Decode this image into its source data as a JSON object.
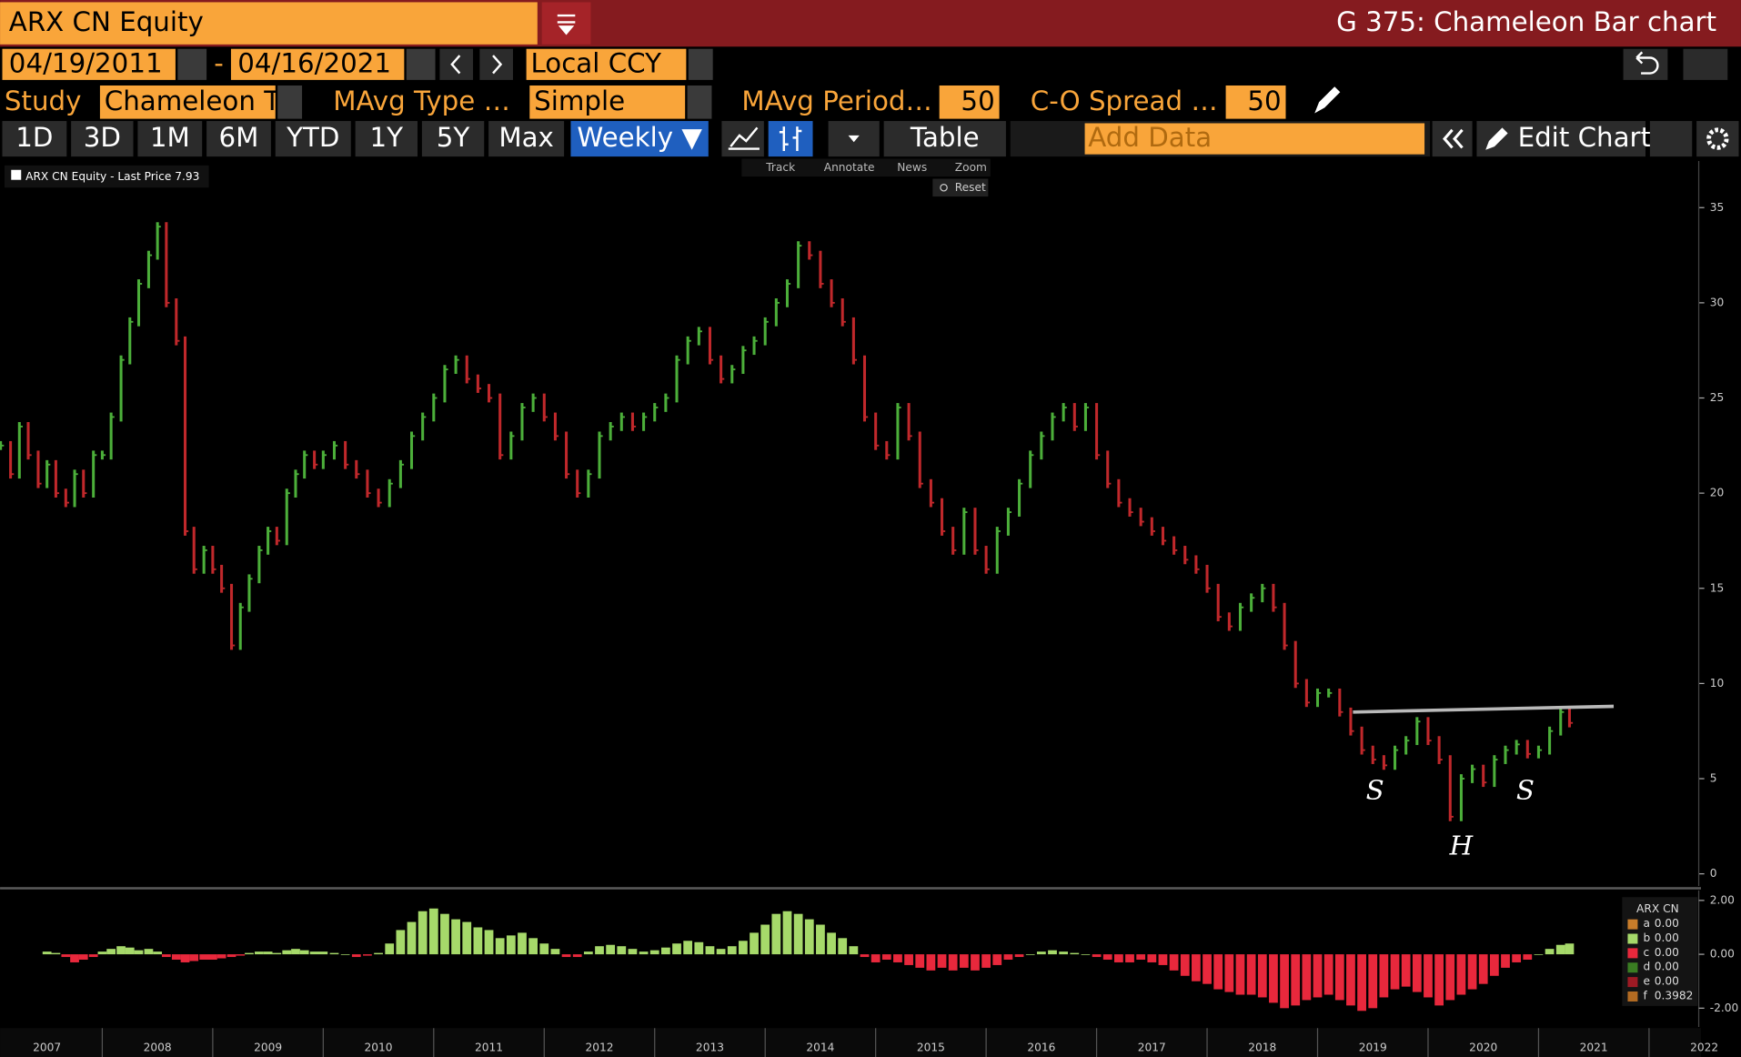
{
  "ui": {
    "ticker": "ARX CN Equity",
    "function_title": "G 375: Chameleon Bar chart",
    "start_date": "04/19/2011",
    "date_sep": "-",
    "end_date": "04/16/2021",
    "currency": "Local CCY",
    "study_label": "Study",
    "study": "Chameleon T",
    "mavg_type_label": "MAvg Type …",
    "mavg_type": "Simple",
    "mavg_period_label": "MAvg Period…",
    "mavg_period": "50",
    "co_spread_label": "C-O Spread …",
    "co_spread": "50",
    "ranges": [
      "1D",
      "3D",
      "1M",
      "6M",
      "YTD",
      "1Y",
      "5Y",
      "Max"
    ],
    "frequency": "Weekly ▼",
    "table": "Table",
    "add_data": "Add Data",
    "edit_chart": "Edit Chart",
    "tools": [
      "Track",
      "Annotate",
      "News",
      "Zoom"
    ],
    "reset": "Reset"
  },
  "chart_data": [
    {
      "type": "bar",
      "legend_text": "ARX CN Equity - Last Price",
      "last_price": 7.93,
      "up_color": "#4caf3a",
      "down_color": "#c0282b",
      "x": [
        2007.08,
        2007.17,
        2007.25,
        2007.33,
        2007.42,
        2007.5,
        2007.58,
        2007.67,
        2007.75,
        2007.83,
        2007.92,
        2008.0,
        2008.08,
        2008.17,
        2008.25,
        2008.33,
        2008.42,
        2008.5,
        2008.58,
        2008.67,
        2008.75,
        2008.83,
        2008.92,
        2009.0,
        2009.08,
        2009.17,
        2009.25,
        2009.33,
        2009.42,
        2009.5,
        2009.58,
        2009.67,
        2009.75,
        2009.83,
        2009.92,
        2010.0,
        2010.1,
        2010.2,
        2010.3,
        2010.4,
        2010.5,
        2010.6,
        2010.7,
        2010.8,
        2010.9,
        2011.0,
        2011.1,
        2011.2,
        2011.3,
        2011.4,
        2011.5,
        2011.6,
        2011.7,
        2011.8,
        2011.9,
        2012.0,
        2012.1,
        2012.2,
        2012.3,
        2012.4,
        2012.5,
        2012.6,
        2012.7,
        2012.8,
        2012.9,
        2013.0,
        2013.1,
        2013.2,
        2013.3,
        2013.4,
        2013.5,
        2013.6,
        2013.7,
        2013.8,
        2013.9,
        2014.0,
        2014.1,
        2014.2,
        2014.3,
        2014.4,
        2014.5,
        2014.6,
        2014.7,
        2014.8,
        2014.9,
        2015.0,
        2015.1,
        2015.2,
        2015.3,
        2015.4,
        2015.5,
        2015.6,
        2015.7,
        2015.8,
        2015.9,
        2016.0,
        2016.1,
        2016.2,
        2016.3,
        2016.4,
        2016.5,
        2016.6,
        2016.7,
        2016.8,
        2016.9,
        2017.0,
        2017.1,
        2017.2,
        2017.3,
        2017.4,
        2017.5,
        2017.6,
        2017.7,
        2017.8,
        2017.9,
        2018.0,
        2018.1,
        2018.2,
        2018.3,
        2018.4,
        2018.5,
        2018.6,
        2018.7,
        2018.8,
        2018.9,
        2019.0,
        2019.1,
        2019.2,
        2019.3,
        2019.4,
        2019.5,
        2019.6,
        2019.7,
        2019.8,
        2019.9,
        2020.0,
        2020.1,
        2020.2,
        2020.3,
        2020.4,
        2020.5,
        2020.6,
        2020.7,
        2020.8,
        2020.9,
        2021.0,
        2021.1,
        2021.2,
        2021.28
      ],
      "values": [
        22.5,
        21,
        23.5,
        22,
        20.5,
        21.5,
        20,
        19.5,
        21,
        20,
        22,
        22,
        24,
        27,
        29,
        31,
        32.5,
        34,
        30,
        28,
        18,
        16,
        17,
        16,
        15,
        12,
        14,
        15.5,
        17,
        18,
        17.5,
        20,
        21,
        22,
        21.5,
        22,
        22.5,
        21.5,
        21,
        20,
        19.5,
        20.5,
        21.5,
        23,
        24,
        25,
        26.5,
        27,
        26,
        25.5,
        25,
        22,
        23,
        24.5,
        25,
        24,
        23,
        21,
        20,
        21,
        23,
        23.5,
        24,
        23.5,
        24,
        24.5,
        25,
        27,
        28,
        28.5,
        27,
        26,
        26.5,
        27.5,
        28,
        29,
        30,
        31,
        33,
        32.5,
        31,
        30,
        29,
        27,
        24,
        22.5,
        22,
        24.5,
        23,
        20.5,
        19.5,
        18,
        17,
        19,
        17,
        16,
        18,
        19,
        20.5,
        22,
        23,
        24,
        24.5,
        23.5,
        24.5,
        22,
        20.5,
        19.5,
        19,
        18.5,
        18,
        17.5,
        17,
        16.5,
        16,
        15,
        13.5,
        13,
        14,
        14.5,
        15,
        14,
        12,
        10,
        9,
        9.5,
        9.5,
        8.5,
        7.5,
        6.5,
        6,
        5.7,
        6.5,
        7,
        8,
        7,
        6,
        3,
        5,
        5.5,
        4.8,
        6,
        6.5,
        6.8,
        6.3,
        6.5,
        7.5,
        8.5,
        7.93
      ],
      "xlim": [
        2007.075,
        2022.45
      ],
      "ylim": [
        -0.64,
        37.45
      ],
      "yticks": [
        0,
        5,
        10,
        15,
        20,
        25,
        30,
        35
      ],
      "trendline": {
        "x": [
          2019.32,
          2021.68
        ],
        "y": [
          8.5,
          8.8
        ],
        "color": "#b9b9b9"
      },
      "annotations": [
        {
          "text": "S",
          "x": 2019.52,
          "y": 4.3
        },
        {
          "text": "H",
          "x": 2020.3,
          "y": 1.4
        },
        {
          "text": "S",
          "x": 2020.88,
          "y": 4.3
        }
      ]
    },
    {
      "type": "histogram",
      "legend_title": "ARX CN",
      "legend": [
        {
          "name": "a",
          "color": "#c97d2a",
          "value": "0.00"
        },
        {
          "name": "b",
          "color": "#a6d96a",
          "value": "0.00"
        },
        {
          "name": "c",
          "color": "#e8283c",
          "value": "0.00"
        },
        {
          "name": "d",
          "color": "#3a7d22",
          "value": "0.00"
        },
        {
          "name": "e",
          "color": "#9e1a24",
          "value": "0.00"
        },
        {
          "name": "f",
          "color": "#b36b22",
          "value": "0.3982"
        }
      ],
      "positive_color": "#a6d96a",
      "negative_color": "#e8283c",
      "x": [
        2007.08,
        2007.17,
        2007.25,
        2007.33,
        2007.42,
        2007.5,
        2007.58,
        2007.67,
        2007.75,
        2007.83,
        2007.92,
        2008.0,
        2008.08,
        2008.17,
        2008.25,
        2008.33,
        2008.42,
        2008.5,
        2008.58,
        2008.67,
        2008.75,
        2008.83,
        2008.92,
        2009.0,
        2009.08,
        2009.17,
        2009.25,
        2009.33,
        2009.42,
        2009.5,
        2009.58,
        2009.67,
        2009.75,
        2009.83,
        2009.92,
        2010.0,
        2010.1,
        2010.2,
        2010.3,
        2010.4,
        2010.5,
        2010.6,
        2010.7,
        2010.8,
        2010.9,
        2011.0,
        2011.1,
        2011.2,
        2011.3,
        2011.4,
        2011.5,
        2011.6,
        2011.7,
        2011.8,
        2011.9,
        2012.0,
        2012.1,
        2012.2,
        2012.3,
        2012.4,
        2012.5,
        2012.6,
        2012.7,
        2012.8,
        2012.9,
        2013.0,
        2013.1,
        2013.2,
        2013.3,
        2013.4,
        2013.5,
        2013.6,
        2013.7,
        2013.8,
        2013.9,
        2014.0,
        2014.1,
        2014.2,
        2014.3,
        2014.4,
        2014.5,
        2014.6,
        2014.7,
        2014.8,
        2014.9,
        2015.0,
        2015.1,
        2015.2,
        2015.3,
        2015.4,
        2015.5,
        2015.6,
        2015.7,
        2015.8,
        2015.9,
        2016.0,
        2016.1,
        2016.2,
        2016.3,
        2016.4,
        2016.5,
        2016.6,
        2016.7,
        2016.8,
        2016.9,
        2017.0,
        2017.1,
        2017.2,
        2017.3,
        2017.4,
        2017.5,
        2017.6,
        2017.7,
        2017.8,
        2017.9,
        2018.0,
        2018.1,
        2018.2,
        2018.3,
        2018.4,
        2018.5,
        2018.6,
        2018.7,
        2018.8,
        2018.9,
        2019.0,
        2019.1,
        2019.2,
        2019.3,
        2019.4,
        2019.5,
        2019.6,
        2019.7,
        2019.8,
        2019.9,
        2020.0,
        2020.1,
        2020.2,
        2020.3,
        2020.4,
        2020.5,
        2020.6,
        2020.7,
        2020.8,
        2020.9,
        2021.0,
        2021.1,
        2021.2,
        2021.28
      ],
      "values": [
        null,
        null,
        null,
        null,
        null,
        0.1,
        0.05,
        -0.1,
        -0.3,
        -0.2,
        -0.1,
        0.1,
        0.2,
        0.3,
        0.25,
        0.15,
        0.2,
        0.1,
        -0.1,
        -0.2,
        -0.3,
        -0.25,
        -0.2,
        -0.2,
        -0.15,
        -0.1,
        -0.05,
        0.05,
        0.1,
        0.1,
        0.05,
        0.15,
        0.2,
        0.15,
        0.1,
        0.1,
        0.05,
        0,
        -0.1,
        -0.05,
        0.05,
        0.4,
        0.9,
        1.2,
        1.6,
        1.7,
        1.5,
        1.3,
        1.2,
        1.0,
        0.9,
        0.6,
        0.7,
        0.8,
        0.6,
        0.4,
        0.2,
        -0.1,
        -0.1,
        0.1,
        0.3,
        0.35,
        0.3,
        0.2,
        0.1,
        0.15,
        0.25,
        0.4,
        0.5,
        0.45,
        0.3,
        0.2,
        0.3,
        0.5,
        0.8,
        1.1,
        1.5,
        1.6,
        1.5,
        1.3,
        1.1,
        0.8,
        0.6,
        0.3,
        -0.1,
        -0.3,
        -0.2,
        -0.3,
        -0.4,
        -0.5,
        -0.6,
        -0.5,
        -0.6,
        -0.5,
        -0.6,
        -0.5,
        -0.4,
        -0.2,
        -0.1,
        0,
        0.1,
        0.15,
        0.1,
        0.05,
        0,
        -0.1,
        -0.2,
        -0.3,
        -0.3,
        -0.2,
        -0.3,
        -0.4,
        -0.6,
        -0.8,
        -1.0,
        -1.1,
        -1.3,
        -1.4,
        -1.5,
        -1.5,
        -1.6,
        -1.8,
        -2.0,
        -1.9,
        -1.7,
        -1.6,
        -1.5,
        -1.7,
        -1.9,
        -2.1,
        -2.0,
        -1.6,
        -1.3,
        -1.2,
        -1.4,
        -1.6,
        -1.9,
        -1.7,
        -1.5,
        -1.3,
        -1.1,
        -0.8,
        -0.5,
        -0.3,
        -0.2,
        0.0,
        0.2,
        0.35,
        0.4
      ],
      "xlim": [
        2007.075,
        2022.45
      ],
      "ylim": [
        -2.7,
        2.37
      ],
      "yticks": [
        {
          "value": 2,
          "label": "2.00"
        },
        {
          "value": 0,
          "label": "0.00"
        },
        {
          "value": -2,
          "label": "-2.00"
        }
      ],
      "xticks": [
        2007,
        2008,
        2009,
        2010,
        2011,
        2012,
        2013,
        2014,
        2015,
        2016,
        2017,
        2018,
        2019,
        2020,
        2021,
        2022
      ]
    }
  ]
}
